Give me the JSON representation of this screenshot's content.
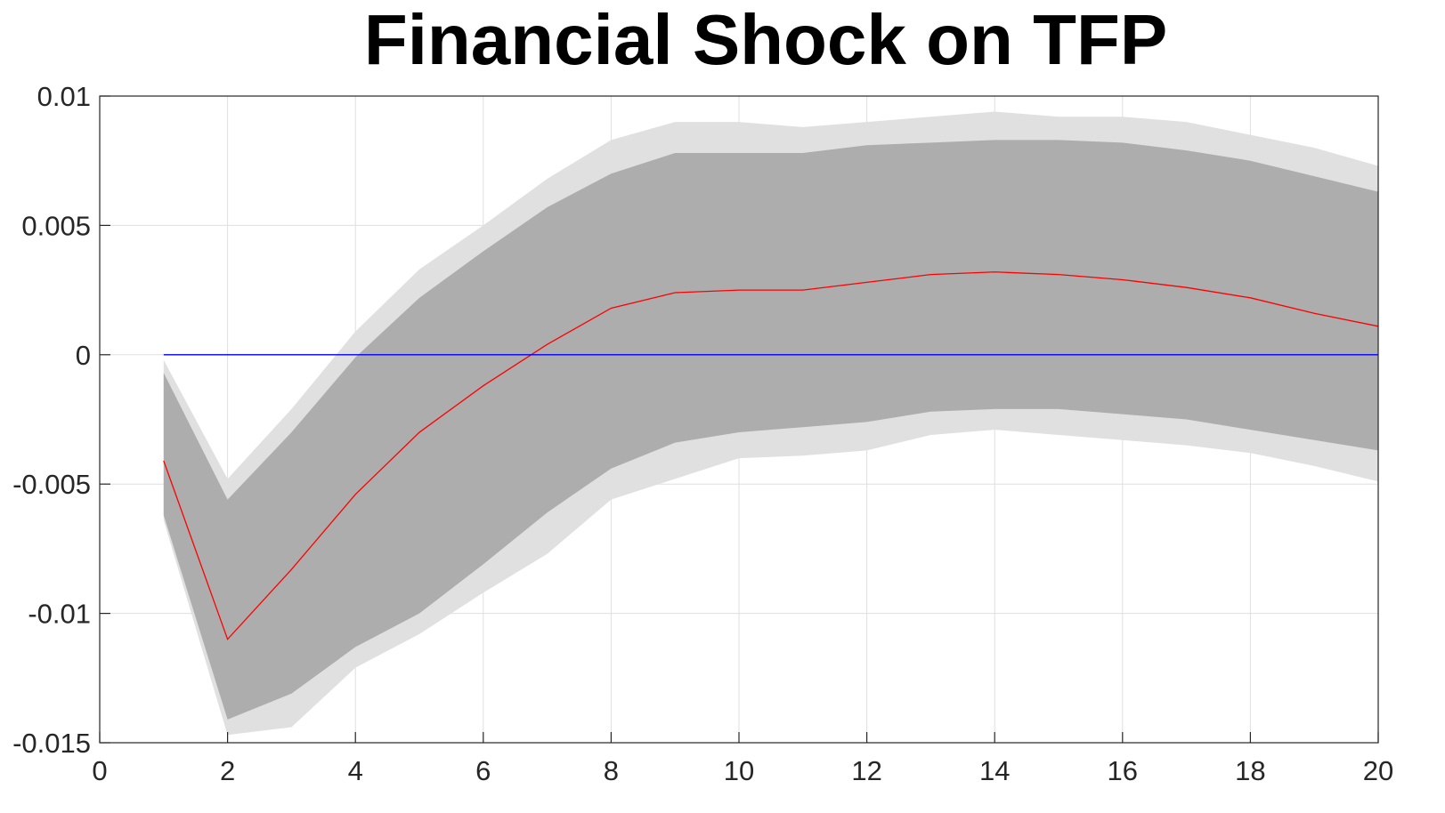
{
  "chart_data": {
    "type": "area",
    "title": "Financial Shock on TFP",
    "xlabel": "",
    "ylabel": "",
    "xlim": [
      0,
      20
    ],
    "ylim": [
      -0.015,
      0.01
    ],
    "x_ticks": [
      0,
      2,
      4,
      6,
      8,
      10,
      12,
      14,
      16,
      18,
      20
    ],
    "x_tick_labels": [
      "0",
      "2",
      "4",
      "6",
      "8",
      "10",
      "12",
      "14",
      "16",
      "18",
      "20"
    ],
    "y_ticks": [
      -0.015,
      -0.01,
      -0.005,
      0,
      0.005,
      0.01
    ],
    "y_tick_labels": [
      "-0.015",
      "-0.01",
      "-0.005",
      "0",
      "0.005",
      "0.01"
    ],
    "grid": true,
    "x": [
      1,
      2,
      3,
      4,
      5,
      6,
      7,
      8,
      9,
      10,
      11,
      12,
      13,
      14,
      15,
      16,
      17,
      18,
      19,
      20
    ],
    "series": [
      {
        "role": "outer-band",
        "color": "#e0e0e0",
        "upper": [
          -0.0002,
          -0.0048,
          -0.0021,
          0.0009,
          0.0033,
          0.005,
          0.0068,
          0.0083,
          0.009,
          0.009,
          0.0088,
          0.009,
          0.0092,
          0.0094,
          0.0092,
          0.0092,
          0.009,
          0.0085,
          0.008,
          0.0073
        ],
        "lower": [
          -0.0064,
          -0.0147,
          -0.0144,
          -0.0121,
          -0.0108,
          -0.0092,
          -0.0077,
          -0.0056,
          -0.0048,
          -0.004,
          -0.0039,
          -0.0037,
          -0.0031,
          -0.0029,
          -0.0031,
          -0.0033,
          -0.0035,
          -0.0038,
          -0.0043,
          -0.0049
        ]
      },
      {
        "role": "inner-band",
        "color": "#adadad",
        "upper": [
          -0.0007,
          -0.0056,
          -0.003,
          -0.0001,
          0.0022,
          0.004,
          0.0057,
          0.007,
          0.0078,
          0.0078,
          0.0078,
          0.0081,
          0.0082,
          0.0083,
          0.0083,
          0.0082,
          0.0079,
          0.0075,
          0.0069,
          0.0063
        ],
        "lower": [
          -0.0062,
          -0.0141,
          -0.0131,
          -0.0113,
          -0.01,
          -0.0081,
          -0.0061,
          -0.0044,
          -0.0034,
          -0.003,
          -0.0028,
          -0.0026,
          -0.0022,
          -0.0021,
          -0.0021,
          -0.0023,
          -0.0025,
          -0.0029,
          -0.0033,
          -0.0037
        ]
      },
      {
        "role": "median",
        "color": "#ff0000",
        "values": [
          -0.0041,
          -0.011,
          -0.0083,
          -0.0054,
          -0.003,
          -0.0012,
          0.0004,
          0.0018,
          0.0024,
          0.0025,
          0.0025,
          0.0028,
          0.0031,
          0.0032,
          0.0031,
          0.0029,
          0.0026,
          0.0022,
          0.0016,
          0.0011
        ]
      },
      {
        "role": "zero-line",
        "color": "#0000ff",
        "values": [
          0,
          0,
          0,
          0,
          0,
          0,
          0,
          0,
          0,
          0,
          0,
          0,
          0,
          0,
          0,
          0,
          0,
          0,
          0,
          0
        ]
      }
    ]
  }
}
